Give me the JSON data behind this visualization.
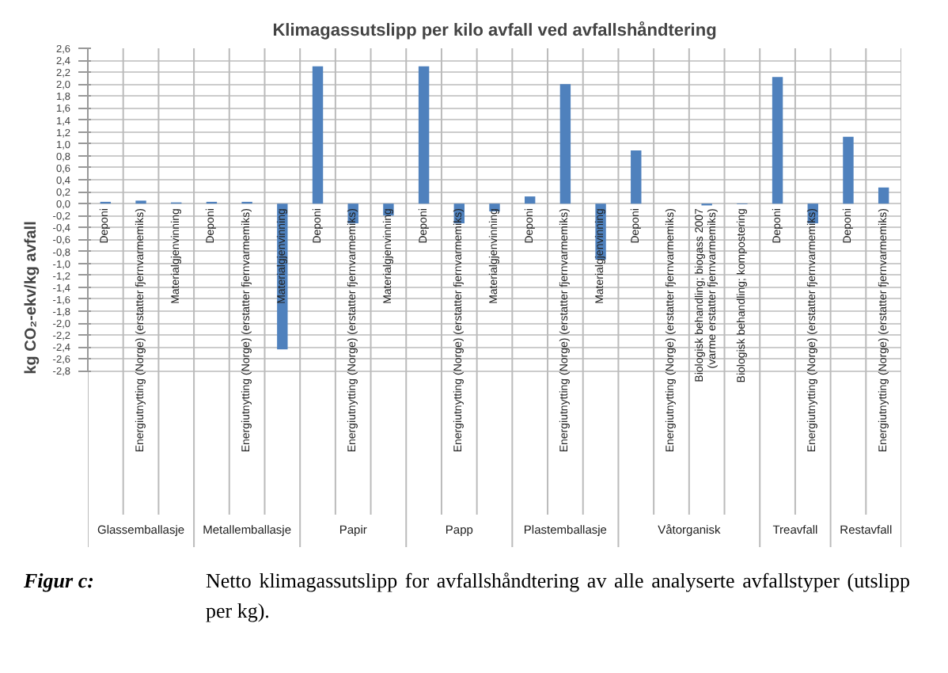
{
  "chart_data": {
    "type": "bar",
    "title": "Klimagassutslipp per kilo avfall ved avfallshåndtering",
    "ylabel": "kg CO₂-ekv/kg avfall",
    "categories": [
      "Deponi",
      "Energiutnytting (Norge) (erstatter fjernvarmemiks)",
      "Materialgjenvinning",
      "Deponi",
      "Energiutnytting (Norge) (erstatter fjernvarmemiks)",
      "Materialgjenvinning",
      "Deponi",
      "Energiutnytting (Norge) (erstatter fjernvarmemiks)",
      "Materialgjenvinning",
      "Deponi",
      "Energiutnytting (Norge) (erstatter fjernvarmemiks)",
      "Materialgjenvinning",
      "Deponi",
      "Energiutnytting (Norge) (erstatter fjernvarmemiks)",
      "Materialgjenvinning",
      "Deponi",
      "Energiutnytting (Norge) (erstatter fjernvarmemiks)",
      "Biologisk behandling; biogass 2007 (varme erstatter fjernvarmemiks)",
      "Biologisk behandling; kompostering",
      "Deponi",
      "Energiutnytting (Norge) (erstatter fjernvarmemiks)",
      "Deponi",
      "Energiutnytting (Norge) (erstatter fjernvarmemiks)"
    ],
    "values": [
      0.03,
      0.05,
      0.02,
      0.03,
      0.03,
      -2.44,
      2.3,
      -0.33,
      -0.2,
      2.3,
      -0.33,
      -0.13,
      0.12,
      2.0,
      -0.94,
      0.89,
      0.0,
      -0.03,
      -0.01,
      2.12,
      -0.33,
      1.12,
      0.27
    ],
    "color": "#4f81bd",
    "ylim": [
      -5.75,
      2.6
    ],
    "yticks": [
      {
        "value": 2.6,
        "label": "2,6"
      },
      {
        "value": 2.4,
        "label": "2,4"
      },
      {
        "value": 2.2,
        "label": "2,2"
      },
      {
        "value": 2.0,
        "label": "2,0"
      },
      {
        "value": 1.8,
        "label": "1,8"
      },
      {
        "value": 1.6,
        "label": "1,6"
      },
      {
        "value": 1.4,
        "label": "1,4"
      },
      {
        "value": 1.2,
        "label": "1,2"
      },
      {
        "value": 1.0,
        "label": "1,0"
      },
      {
        "value": 0.8,
        "label": "0,8"
      },
      {
        "value": 0.6,
        "label": "0,6"
      },
      {
        "value": 0.4,
        "label": "0,4"
      },
      {
        "value": 0.2,
        "label": "0,2"
      },
      {
        "value": 0.0,
        "label": "0,0"
      },
      {
        "value": -0.2,
        "label": "-0,2"
      },
      {
        "value": -0.4,
        "label": "-0,4"
      },
      {
        "value": -0.6,
        "label": "-0,6"
      },
      {
        "value": -0.8,
        "label": "-0,8"
      },
      {
        "value": -1.0,
        "label": "-1,0"
      },
      {
        "value": -1.2,
        "label": "-1,2"
      },
      {
        "value": -1.4,
        "label": "-1,4"
      },
      {
        "value": -1.6,
        "label": "-1,6"
      },
      {
        "value": -1.8,
        "label": "-1,8"
      },
      {
        "value": -2.0,
        "label": "-2,0"
      },
      {
        "value": -2.2,
        "label": "-2,2"
      },
      {
        "value": -2.4,
        "label": "-2,4"
      },
      {
        "value": -2.6,
        "label": "-2,6"
      },
      {
        "value": -2.8,
        "label": "-2,8"
      }
    ],
    "grid": "y",
    "annotations": [
      "Glassemballasje",
      "Metallemballasje",
      "Papir",
      "Papp",
      "Plastemballasje",
      "Våtorganisk",
      "Treavfall",
      "Restavfall",
      "Figur c:",
      "Netto klimagassutslipp for avfallshåndtering av alle analyserte avfallstyper (utslipp per kg)."
    ]
  }
}
